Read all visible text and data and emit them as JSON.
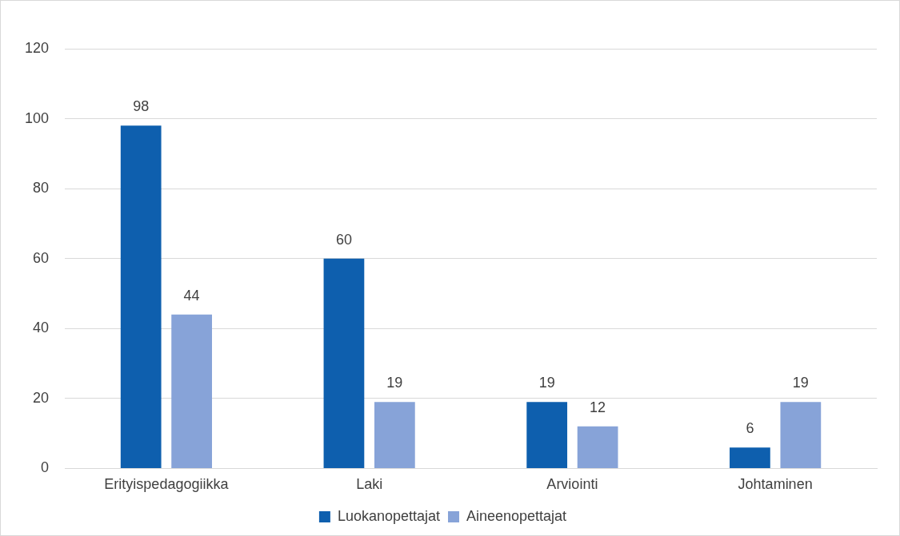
{
  "chart_data": {
    "type": "bar",
    "categories": [
      "Erityispedagogiikka",
      "Laki",
      "Arviointi",
      "Johtaminen"
    ],
    "series": [
      {
        "name": "Luokanopettajat",
        "color": "#0e5fae",
        "values": [
          98,
          60,
          19,
          6
        ]
      },
      {
        "name": "Aineenopettajat",
        "color": "#87a3d8",
        "values": [
          44,
          19,
          12,
          19
        ]
      }
    ],
    "ylim": [
      0,
      120
    ],
    "yticks": [
      0,
      20,
      40,
      60,
      80,
      100,
      120
    ],
    "grid": "y",
    "legend": "bottom",
    "data_labels": true
  }
}
